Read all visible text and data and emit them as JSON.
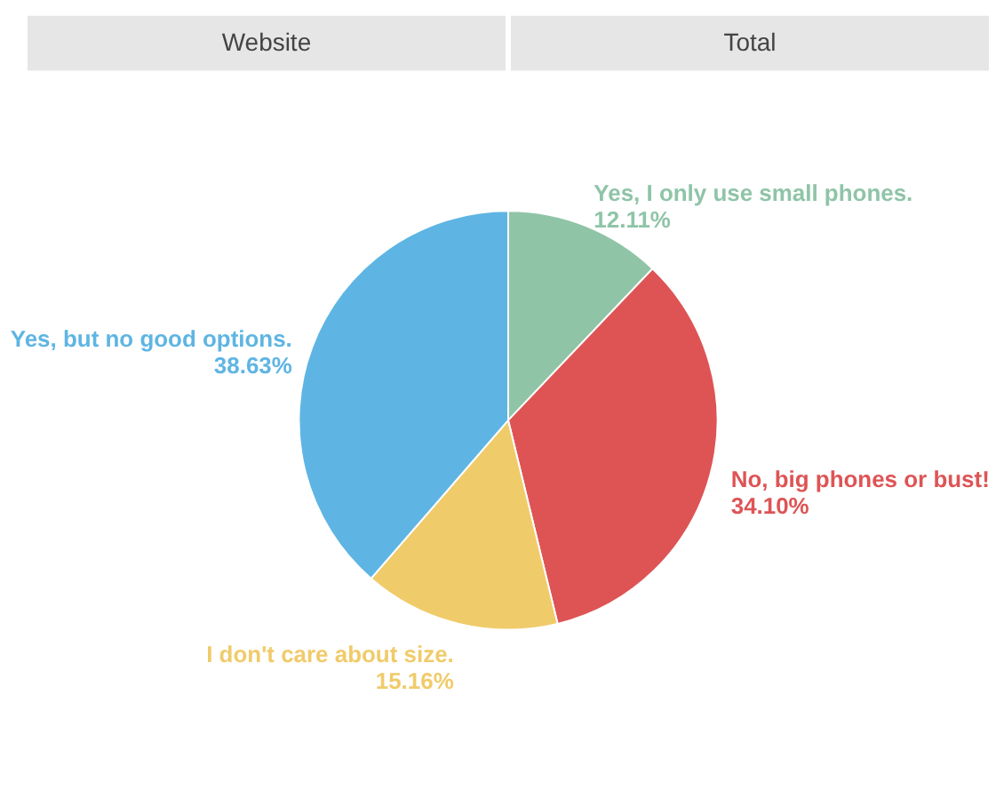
{
  "chart_data": {
    "type": "pie",
    "annotations": [
      "Website",
      "Total"
    ],
    "categories": [
      "Yes, I only use small phones.",
      "No, big phones or bust!",
      "I don't care about size.",
      "Yes, but no good options."
    ],
    "values": [
      12.11,
      34.1,
      15.16,
      38.63
    ],
    "value_labels": [
      "12.11%",
      "34.10%",
      "15.16%",
      "38.63%"
    ],
    "colors": [
      "#8fc4a7",
      "#de5455",
      "#f0cb6a",
      "#5eb5e3"
    ],
    "legend": false
  }
}
